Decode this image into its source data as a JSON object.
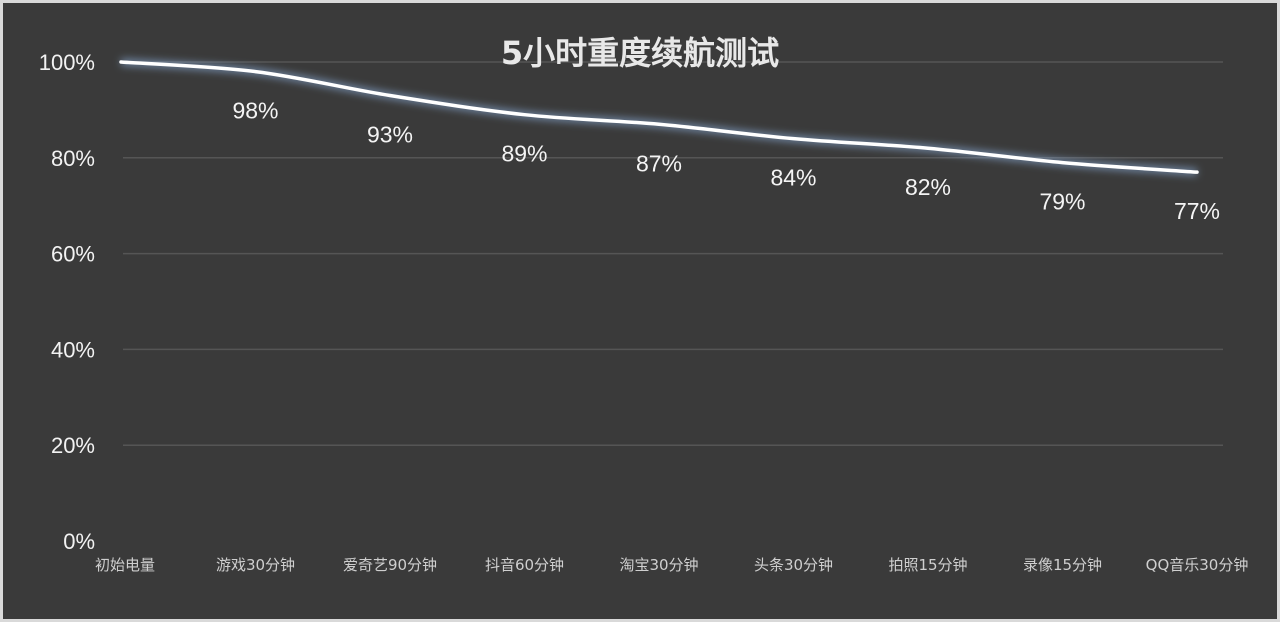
{
  "chart_data": {
    "type": "line",
    "title": "5小时重度续航测试",
    "categories": [
      "初始电量",
      "游戏30分钟",
      "爱奇艺90分钟",
      "抖音60分钟",
      "淘宝30分钟",
      "头条30分钟",
      "拍照15分钟",
      "录像15分钟",
      "QQ音乐30分钟"
    ],
    "values": [
      100,
      98,
      93,
      89,
      87,
      84,
      82,
      79,
      77
    ],
    "data_labels": [
      "",
      "98%",
      "93%",
      "89%",
      "87%",
      "84%",
      "82%",
      "79%",
      "77%"
    ],
    "y_ticks": [
      "0%",
      "20%",
      "40%",
      "60%",
      "80%",
      "100%"
    ],
    "ylim": [
      0,
      100
    ],
    "xlabel": "",
    "ylabel": "",
    "grid": true,
    "colors": {
      "background": "#3a3a3a",
      "line": "#ffffff",
      "glow": "#9ec8ff",
      "grid": "#555555"
    }
  }
}
